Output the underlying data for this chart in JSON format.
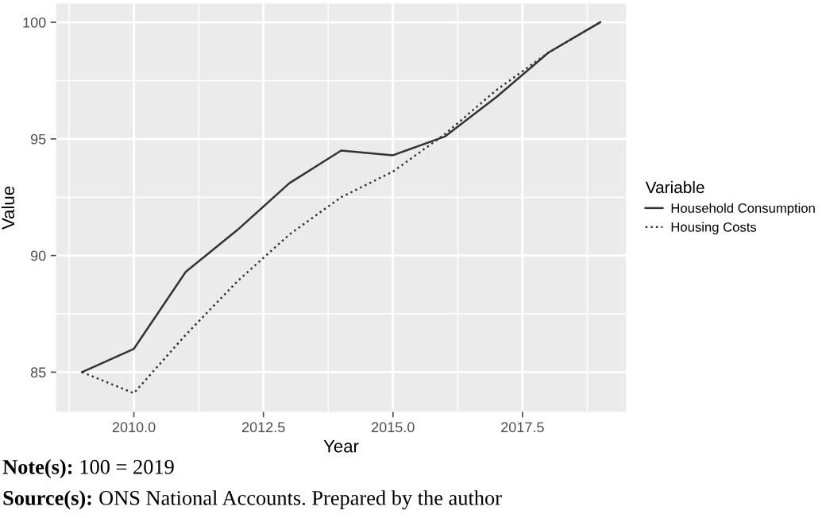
{
  "chart_data": {
    "type": "line",
    "xlabel": "Year",
    "ylabel": "Value",
    "legend_title": "Variable",
    "x": [
      2009,
      2010,
      2011,
      2012,
      2013,
      2014,
      2015,
      2016,
      2017,
      2018,
      2019
    ],
    "series": [
      {
        "name": "Household Consumption",
        "color": "#333333",
        "line_style": "solid",
        "values": [
          85.0,
          86.0,
          89.3,
          91.1,
          93.1,
          94.5,
          94.3,
          95.1,
          96.8,
          98.7,
          100.0
        ]
      },
      {
        "name": "Housing Costs",
        "color": "#333333",
        "line_style": "dotted",
        "values": [
          85.0,
          84.1,
          86.6,
          88.9,
          90.9,
          92.5,
          93.6,
          95.2,
          97.1,
          98.7,
          100.0
        ]
      }
    ],
    "xlim": [
      2008.5,
      2019.5
    ],
    "ylim": [
      83.3,
      100.8
    ],
    "xticks": [
      {
        "value": 2010,
        "label": "2010.0"
      },
      {
        "value": 2012.5,
        "label": "2012.5"
      },
      {
        "value": 2015,
        "label": "2015.0"
      },
      {
        "value": 2017.5,
        "label": "2017.5"
      }
    ],
    "yticks": [
      85,
      90,
      95,
      100
    ],
    "grid": true,
    "legend": "right",
    "marker": "none",
    "annotations": [
      "Note(s): 100 = 2019",
      "Source(s): ONS National Accounts. Prepared by the author"
    ]
  }
}
